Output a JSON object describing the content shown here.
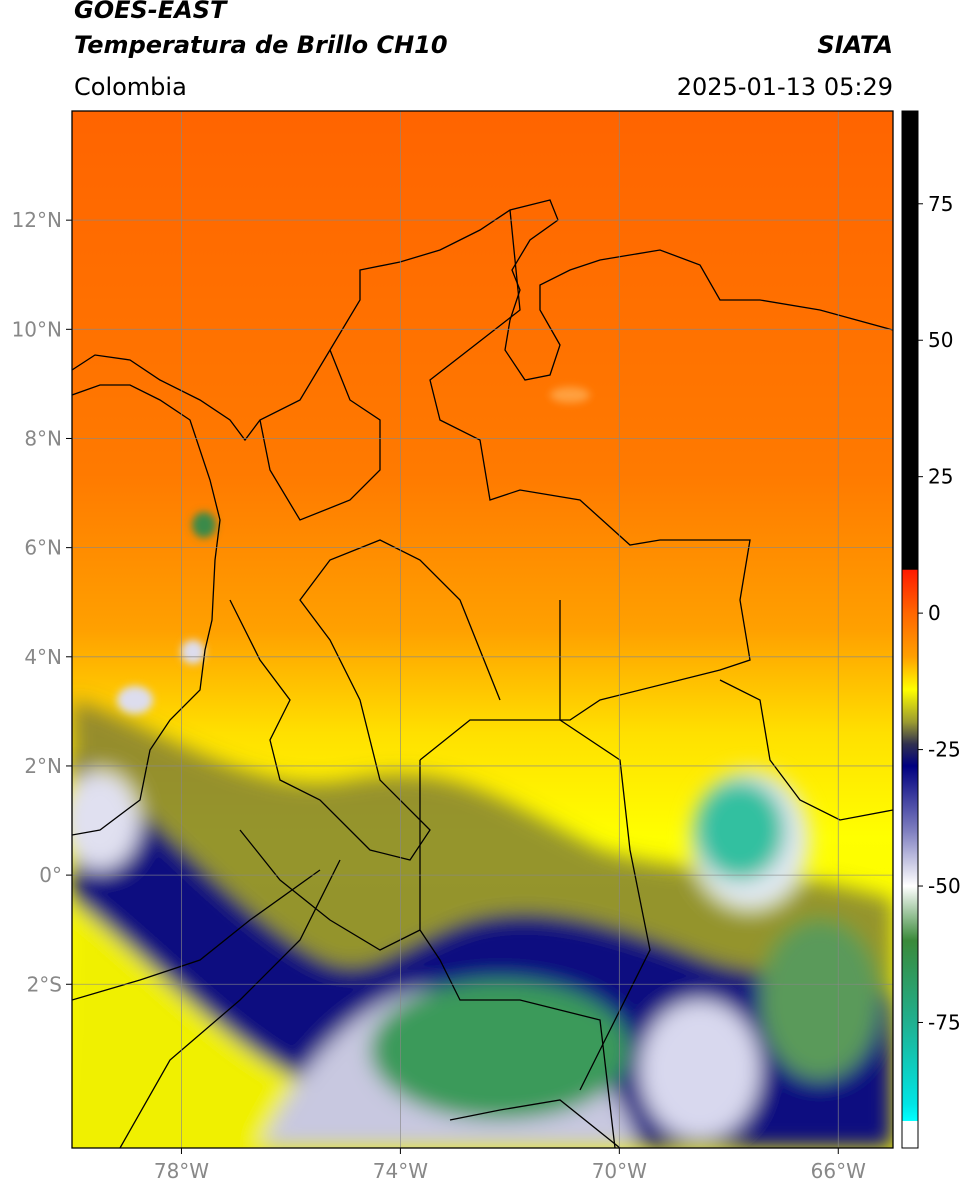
{
  "header": {
    "title": "GOES-EAST",
    "subtitle": "Temperatura de Brillo CH10",
    "source": "SIATA",
    "region": "Colombia",
    "datetime": "2025-01-13 05:29"
  },
  "map": {
    "xlim": [
      -80,
      -65
    ],
    "ylim": [
      -5,
      14
    ],
    "xticks": [
      {
        "value": -78,
        "label": "78°W"
      },
      {
        "value": -74,
        "label": "74°W"
      },
      {
        "value": -70,
        "label": "70°W"
      },
      {
        "value": -66,
        "label": "66°W"
      }
    ],
    "yticks": [
      {
        "value": 12,
        "label": "12°N"
      },
      {
        "value": 10,
        "label": "10°N"
      },
      {
        "value": 8,
        "label": "8°N"
      },
      {
        "value": 6,
        "label": "6°N"
      },
      {
        "value": 4,
        "label": "4°N"
      },
      {
        "value": 2,
        "label": "2°N"
      },
      {
        "value": 0,
        "label": "0°"
      },
      {
        "value": -2,
        "label": "2°S"
      }
    ],
    "grid": true
  },
  "colorbar": {
    "lim": [
      -98,
      92
    ],
    "ticks": [
      75,
      50,
      25,
      0,
      -25,
      -50,
      -75
    ],
    "stops": [
      {
        "value": 92,
        "color": "#000000"
      },
      {
        "value": 8,
        "color": "#000000"
      },
      {
        "value": 7.9,
        "color": "#ff1a00"
      },
      {
        "value": 0,
        "color": "#ff6600"
      },
      {
        "value": -8,
        "color": "#ffa000"
      },
      {
        "value": -14,
        "color": "#ffff00"
      },
      {
        "value": -20,
        "color": "#9a9a30"
      },
      {
        "value": -24,
        "color": "#303050"
      },
      {
        "value": -28,
        "color": "#000080"
      },
      {
        "value": -40,
        "color": "#8080c0"
      },
      {
        "value": -50,
        "color": "#ffffff"
      },
      {
        "value": -60,
        "color": "#3a8a3a"
      },
      {
        "value": -75,
        "color": "#20b090"
      },
      {
        "value": -90,
        "color": "#00e5e5"
      },
      {
        "value": -93,
        "color": "#00ffff"
      },
      {
        "value": -93.1,
        "color": "#ffffff"
      },
      {
        "value": -98,
        "color": "#ffffff"
      }
    ]
  }
}
